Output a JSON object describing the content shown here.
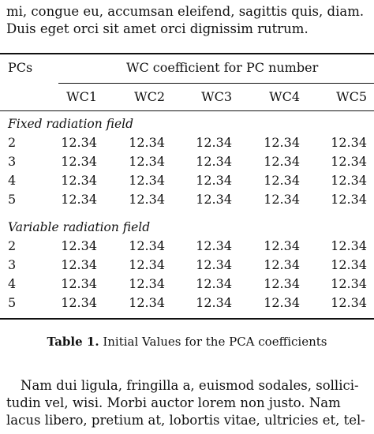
{
  "top_paragraph": {
    "lines": [
      "mi, congue eu, accumsan eleifend, sagittis quis, diam.",
      "Duis eget orci sit amet orci dignissim rutrum."
    ]
  },
  "table": {
    "header": {
      "pcs_label": "PCs",
      "group_label": "WC coefficient for PC number",
      "columns": [
        "WC1",
        "WC2",
        "WC3",
        "WC4",
        "WC5"
      ]
    },
    "sections": [
      {
        "title": "Fixed radiation field",
        "rows": [
          {
            "pc": "2",
            "values": [
              "12.34",
              "12.34",
              "12.34",
              "12.34",
              "12.34"
            ]
          },
          {
            "pc": "3",
            "values": [
              "12.34",
              "12.34",
              "12.34",
              "12.34",
              "12.34"
            ]
          },
          {
            "pc": "4",
            "values": [
              "12.34",
              "12.34",
              "12.34",
              "12.34",
              "12.34"
            ]
          },
          {
            "pc": "5",
            "values": [
              "12.34",
              "12.34",
              "12.34",
              "12.34",
              "12.34"
            ]
          }
        ]
      },
      {
        "title": "Variable radiation field",
        "rows": [
          {
            "pc": "2",
            "values": [
              "12.34",
              "12.34",
              "12.34",
              "12.34",
              "12.34"
            ]
          },
          {
            "pc": "3",
            "values": [
              "12.34",
              "12.34",
              "12.34",
              "12.34",
              "12.34"
            ]
          },
          {
            "pc": "4",
            "values": [
              "12.34",
              "12.34",
              "12.34",
              "12.34",
              "12.34"
            ]
          },
          {
            "pc": "5",
            "values": [
              "12.34",
              "12.34",
              "12.34",
              "12.34",
              "12.34"
            ]
          }
        ]
      }
    ],
    "caption": {
      "label": "Table 1.",
      "text": "Initial Values for the PCA coefficients"
    }
  },
  "bottom_paragraph": {
    "lines": [
      "Nam dui ligula, fringilla a, euismod sodales, sollici-",
      "tudin vel, wisi.  Morbi auctor lorem non justo.  Nam",
      "lacus libero, pretium at, lobortis vitae, ultricies et, tel-"
    ]
  }
}
